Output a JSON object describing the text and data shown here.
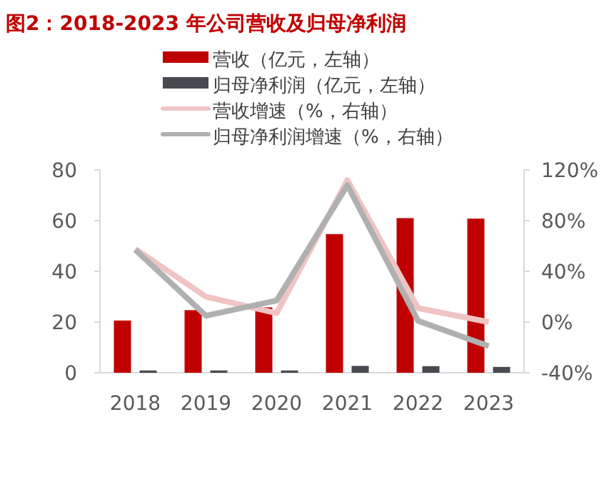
{
  "chart_data": {
    "type": "bar",
    "title": "图2：2018-2023 年公司营收及归母净利润",
    "categories": [
      "2018",
      "2019",
      "2020",
      "2021",
      "2022",
      "2023"
    ],
    "series": [
      {
        "name": "营收（亿元，左轴）",
        "color": "#c00000",
        "values": [
          20.6,
          24.7,
          25.8,
          54.7,
          61,
          60.8
        ]
      },
      {
        "name": "归母净利润（亿元，左轴）",
        "color": "#474a4f",
        "values": [
          0.9,
          0.9,
          0.9,
          2.7,
          2.6,
          2.3
        ]
      },
      {
        "name": "营收增速（%，右轴）",
        "type": "line",
        "axis": "y2",
        "color": "#f0c4c4",
        "values": [
          57.7,
          20,
          7,
          112,
          11,
          0
        ]
      },
      {
        "name": "归母净利润增速（%，右轴）",
        "type": "line",
        "axis": "y2",
        "color": "#b0b0b0",
        "values": [
          57,
          5,
          17,
          108,
          1,
          -19
        ]
      }
    ],
    "ylim": [
      0,
      80
    ],
    "yticks": [
      0,
      20,
      40,
      60,
      80
    ],
    "y2lim": [
      -40,
      120
    ],
    "y2ticks": [
      {
        "value": -40,
        "label": "-40%"
      },
      {
        "value": 0,
        "label": "0%"
      },
      {
        "value": 40,
        "label": "40%"
      },
      {
        "value": 80,
        "label": "80%"
      },
      {
        "value": 120,
        "label": "120%"
      }
    ],
    "legend": "top",
    "grid": false,
    "marker": "none",
    "line_style": "solid"
  }
}
